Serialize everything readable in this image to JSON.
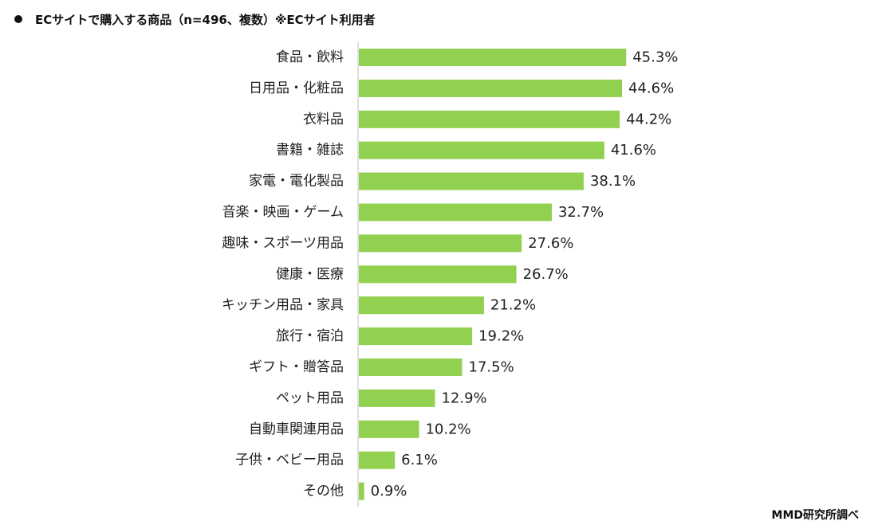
{
  "header": {
    "title": "ECサイトで購入する商品（n=496、複数）※ECサイト利用者"
  },
  "source": "MMD研究所調べ",
  "colors": {
    "bar": "#92d050",
    "axis": "#bfbfbf"
  },
  "chart_data": {
    "type": "bar",
    "orientation": "horizontal",
    "categories": [
      "食品・飲料",
      "日用品・化粧品",
      "衣料品",
      "書籍・雑誌",
      "家電・電化製品",
      "音楽・映画・ゲーム",
      "趣味・スポーツ用品",
      "健康・医療",
      "キッチン用品・家具",
      "旅行・宿泊",
      "ギフト・贈答品",
      "ペット用品",
      "自動車関連用品",
      "子供・ベビー用品",
      "その他"
    ],
    "values": [
      45.3,
      44.6,
      44.2,
      41.6,
      38.1,
      32.7,
      27.6,
      26.7,
      21.2,
      19.2,
      17.5,
      12.9,
      10.2,
      6.1,
      0.9
    ],
    "value_labels": [
      "45.3%",
      "44.6%",
      "44.2%",
      "41.6%",
      "38.1%",
      "32.7%",
      "27.6%",
      "26.7%",
      "21.2%",
      "19.2%",
      "17.5%",
      "12.9%",
      "10.2%",
      "6.1%",
      "0.9%"
    ],
    "unit": "%",
    "xlim": [
      0,
      100
    ],
    "grid": false,
    "legend": false
  }
}
